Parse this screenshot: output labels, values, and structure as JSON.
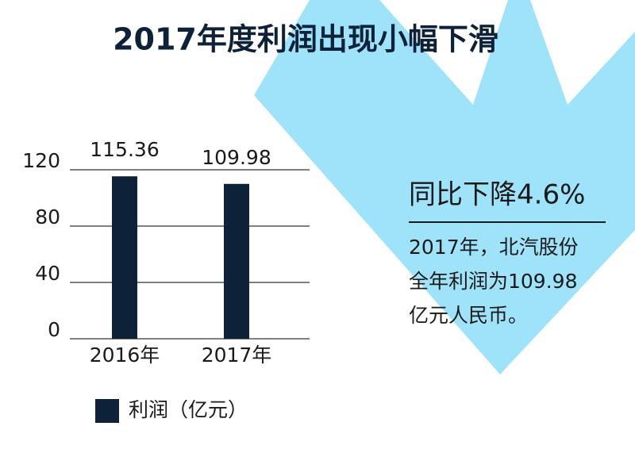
{
  "chart_data": {
    "type": "bar",
    "title": "2017年度利润出现小幅下滑",
    "categories": [
      "2016年",
      "2017年"
    ],
    "series": [
      {
        "name": "利润（亿元）",
        "color": "#0d2238",
        "values": [
          115.36,
          109.98
        ]
      }
    ],
    "ylim": [
      0,
      120
    ],
    "yticks": [
      0,
      40,
      80,
      120
    ],
    "grid": true,
    "annotations": {
      "headline": "同比下降4.6%",
      "body": [
        "2017年，北汽股份",
        "全年利润为109.98",
        "亿元人民币。"
      ]
    }
  }
}
